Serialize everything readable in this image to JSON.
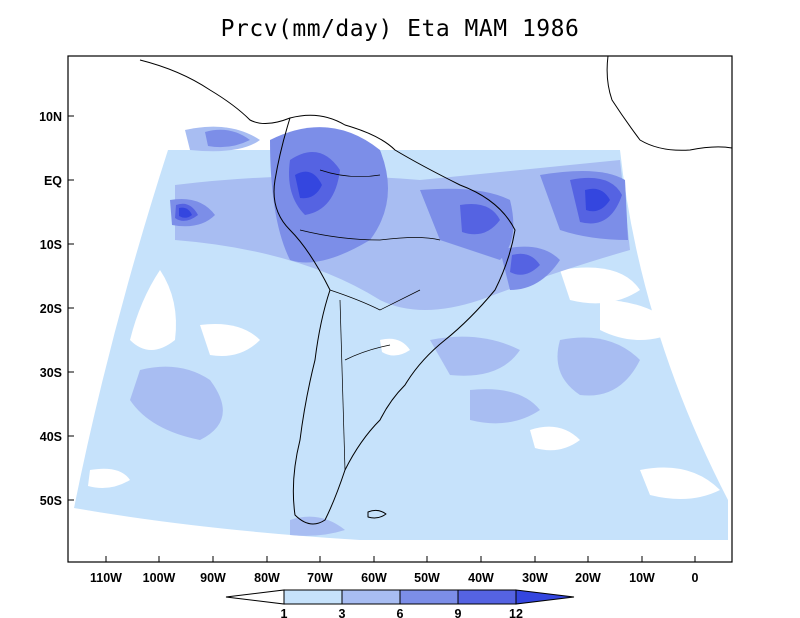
{
  "title": "Prcv(mm/day) Eta MAM 1986",
  "variable": "Prcv",
  "units": "mm/day",
  "model": "Eta",
  "season": "MAM",
  "year": "1986",
  "lat_labels": [
    "10N",
    "EQ",
    "10S",
    "20S",
    "30S",
    "40S",
    "50S"
  ],
  "lon_labels": [
    "110W",
    "100W",
    "90W",
    "80W",
    "70W",
    "60W",
    "50W",
    "40W",
    "30W",
    "20W",
    "10W",
    "0"
  ],
  "colorbar": {
    "levels": [
      "1",
      "3",
      "6",
      "9",
      "12"
    ],
    "colors": [
      "#ffffff",
      "#c6e2fb",
      "#a8bdf2",
      "#7c8ee8",
      "#5563e2",
      "#3446df"
    ]
  },
  "legend_position": "bottom-center"
}
